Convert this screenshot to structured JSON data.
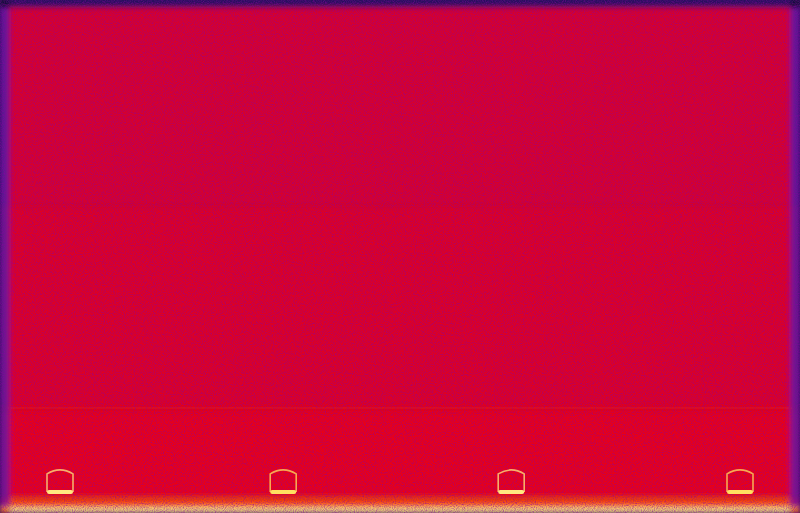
{
  "chart_data": {
    "type": "spectrogram",
    "tick_labels": false,
    "grid": false,
    "xlim": [
      0,
      1
    ],
    "ylim": [
      0,
      1
    ],
    "color_range": [
      0,
      1
    ],
    "x_edges": [
      0,
      0.012,
      0.5,
      0.988,
      1
    ],
    "y_edges": [
      0,
      0.012,
      0.03,
      0.2,
      0.21,
      0.6,
      0.985,
      1
    ],
    "cells": [
      [
        0.9,
        0.97,
        0.97,
        0.9
      ],
      [
        0.62,
        0.86,
        0.86,
        0.62
      ],
      [
        0.56,
        0.79,
        0.79,
        0.56
      ],
      [
        0.56,
        0.81,
        0.81,
        0.56
      ],
      [
        0.54,
        0.77,
        0.77,
        0.54
      ],
      [
        0.52,
        0.76,
        0.76,
        0.52
      ],
      [
        0.2,
        0.35,
        0.35,
        0.2
      ]
    ],
    "events": {
      "x": [
        0.075,
        0.354,
        0.639,
        0.925
      ],
      "y_low": [
        0.041,
        0.041,
        0.041,
        0.041
      ],
      "y_high": [
        0.084,
        0.084,
        0.084,
        0.084
      ],
      "values": [
        0.97,
        0.96,
        0.97,
        0.96
      ]
    }
  }
}
